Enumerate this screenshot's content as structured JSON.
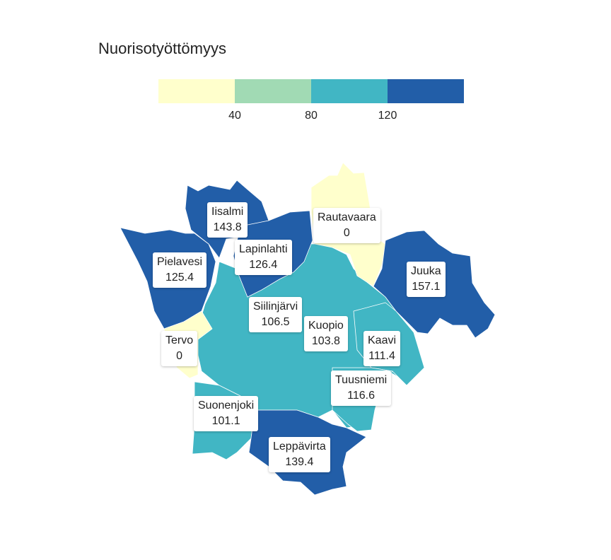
{
  "title": "Nuorisotyöttömyys",
  "legend": {
    "colors": [
      "#ffffcc",
      "#a1dab4",
      "#41b6c4",
      "#225ea8"
    ],
    "ticks": [
      "40",
      "80",
      "120"
    ]
  },
  "regions": [
    {
      "name": "Iisalmi",
      "value": "143.8"
    },
    {
      "name": "Rautavaara",
      "value": "0"
    },
    {
      "name": "Lapinlahti",
      "value": "126.4"
    },
    {
      "name": "Pielavesi",
      "value": "125.4"
    },
    {
      "name": "Juuka",
      "value": "157.1"
    },
    {
      "name": "Siilinjärvi",
      "value": "106.5"
    },
    {
      "name": "Kuopio",
      "value": "103.8"
    },
    {
      "name": "Tervo",
      "value": "0"
    },
    {
      "name": "Kaavi",
      "value": "111.4"
    },
    {
      "name": "Tuusniemi",
      "value": "116.6"
    },
    {
      "name": "Suonenjoki",
      "value": "101.1"
    },
    {
      "name": "Leppävirta",
      "value": "139.4"
    }
  ]
}
